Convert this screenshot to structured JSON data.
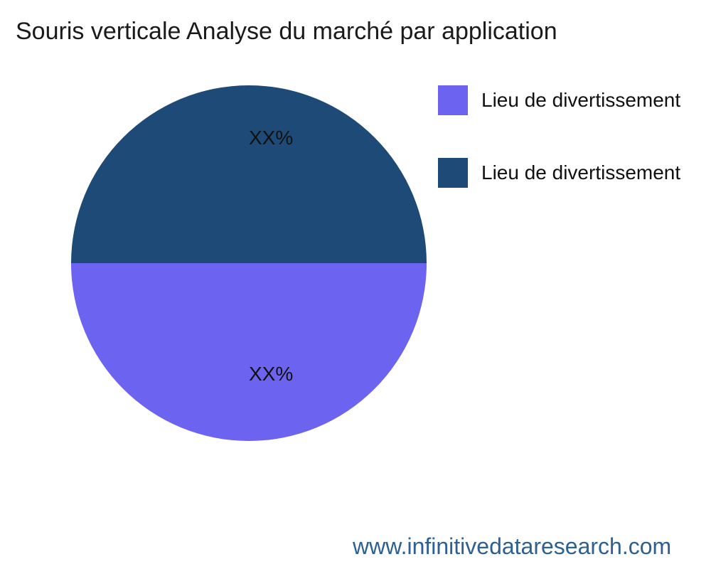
{
  "title": "Souris verticale Analyse du marché par application",
  "chart_data": {
    "type": "pie",
    "title": "Souris verticale Analyse du marché par application",
    "legend_position": "right",
    "slices": [
      {
        "label": "Lieu de divertissement",
        "value": 50,
        "value_label": "XX%",
        "color": "#1E4A78",
        "position": "top half"
      },
      {
        "label": "Lieu de divertissement",
        "value": 50,
        "value_label": "XX%",
        "color": "#6C63F0",
        "position": "bottom half"
      }
    ]
  },
  "legend": {
    "items": [
      {
        "label": "Lieu de divertissement",
        "color": "#6C63F0"
      },
      {
        "label": "Lieu de divertissement",
        "color": "#1E4A78"
      }
    ]
  },
  "footer": {
    "website": "www.infinitivedataresearch.com",
    "color": "#2E6091"
  }
}
